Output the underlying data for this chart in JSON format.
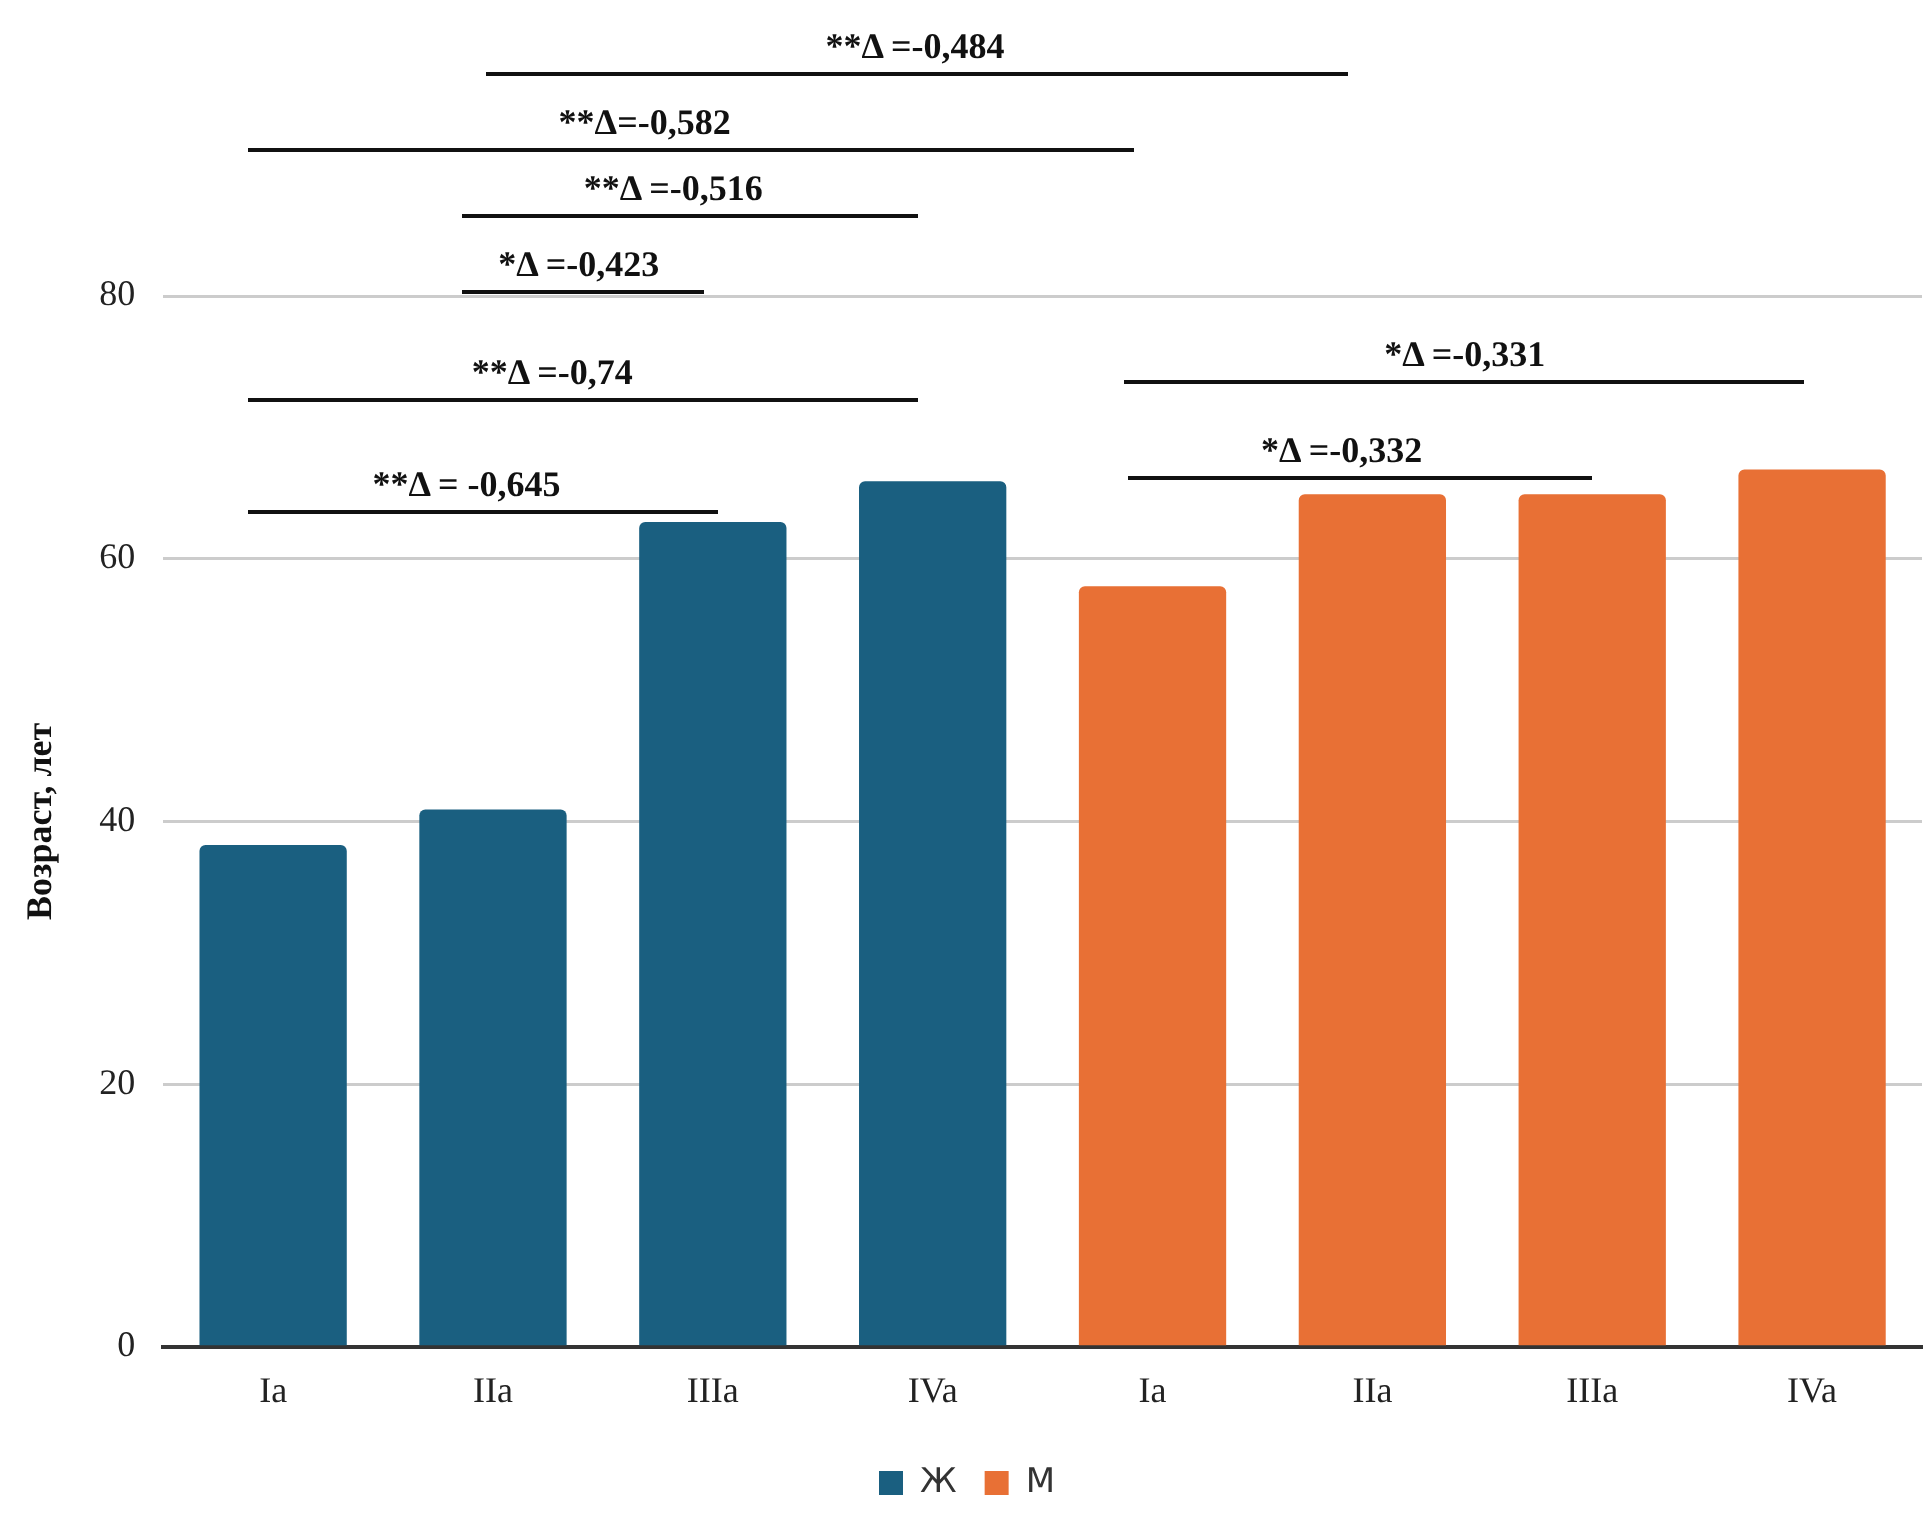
{
  "chart_data": {
    "type": "bar",
    "ylabel": "Возраст, лет",
    "categories": [
      "Ia",
      "IIa",
      "IIIa",
      "IVa",
      "Ia",
      "IIa",
      "IIIa",
      "IVa"
    ],
    "series": [
      {
        "name": "Ж",
        "color": "#1a5f80",
        "values": [
          38.2,
          40.9,
          62.8,
          65.9,
          null,
          null,
          null,
          null
        ]
      },
      {
        "name": "М",
        "color": "#e87035",
        "values": [
          null,
          null,
          null,
          null,
          57.9,
          64.9,
          64.9,
          66.8
        ]
      }
    ],
    "ylim": [
      0,
      80
    ],
    "yticks": [
      0,
      20,
      40,
      60,
      80
    ],
    "grid": "y",
    "legend": "bottom",
    "annotations": [
      "**Δ =-0,484",
      "**Δ=-0,582",
      "**Δ =-0,516",
      "*Δ =-0,423",
      "**Δ =-0,74",
      "**Δ = -0,645",
      "*Δ =-0,331",
      "*Δ =-0,332"
    ]
  }
}
